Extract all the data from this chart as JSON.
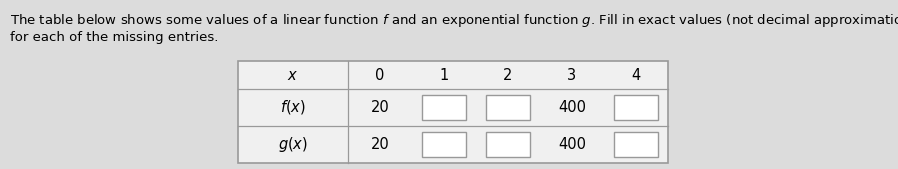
{
  "bg_color": "#dcdcdc",
  "table_bg": "#f0f0f0",
  "box_color": "#ffffff",
  "border_color": "#999999",
  "text_color": "#000000",
  "font_size_desc": 9.5,
  "font_size_table": 10.5,
  "x_values": [
    "0",
    "1",
    "2",
    "3",
    "4"
  ],
  "f_known": {
    "0": "20",
    "3": "400"
  },
  "g_known": {
    "0": "20",
    "3": "400"
  },
  "desc_line1": "The table below shows some values of a linear function $f$ and an exponential function $g$. Fill in exact values (not decimal approximations)",
  "desc_line2": "for each of the missing entries."
}
